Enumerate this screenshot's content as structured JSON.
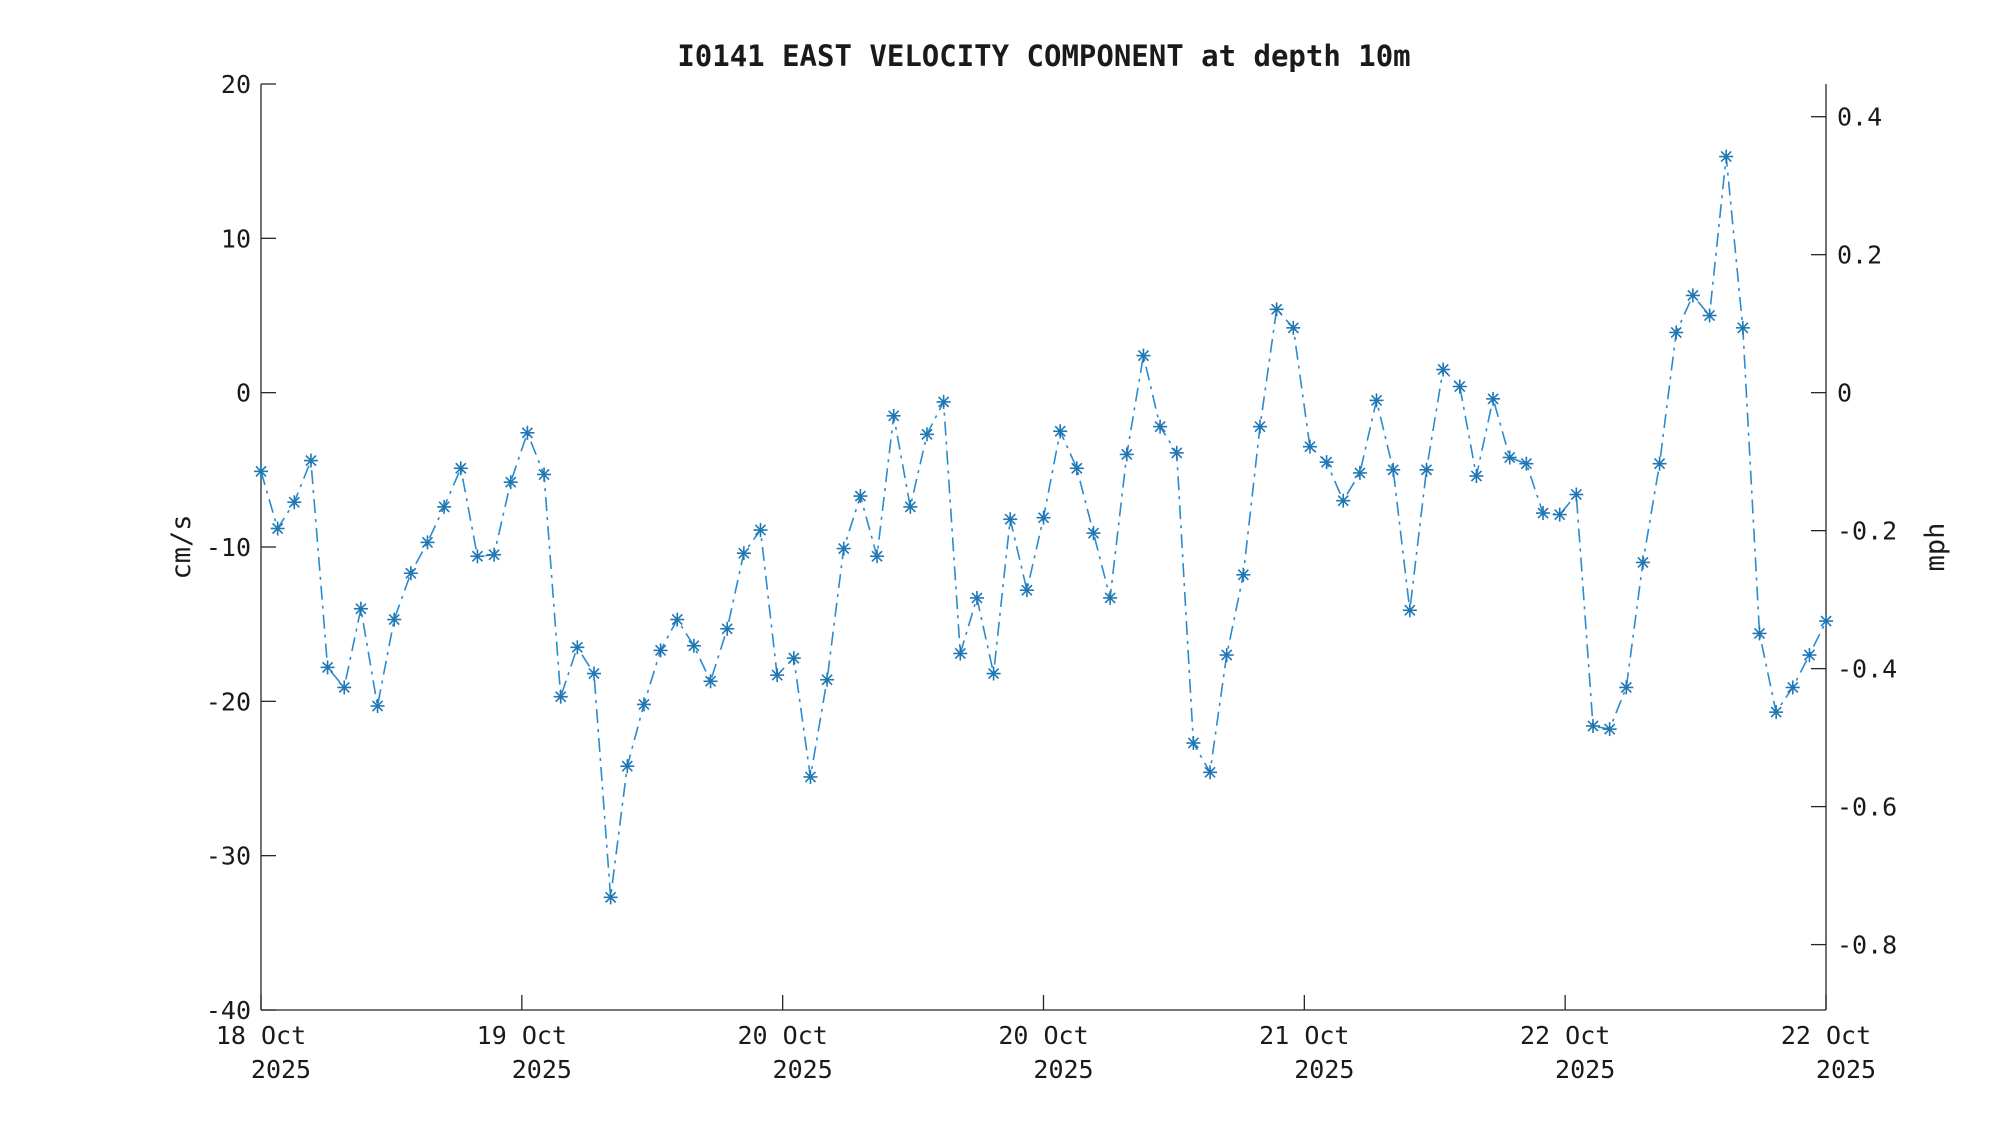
{
  "chart_data": {
    "type": "line",
    "title": "I0141 EAST VELOCITY COMPONENT at depth 10m",
    "ylabel": "cm/s",
    "y2label": "mph",
    "ylim": [
      -40,
      20
    ],
    "y2lim": [
      -0.8948,
      0.4474
    ],
    "yticks": [
      "-40",
      "-30",
      "-20",
      "-10",
      "0",
      "10",
      "20"
    ],
    "y2ticks": [
      "-0.8",
      "-0.6",
      "-0.4",
      "-0.2",
      "0",
      "0.2",
      "0.4"
    ],
    "xlim": [
      0,
      3600
    ],
    "xlabel_units": "minutes after 18 Oct 2025 00:00",
    "xticks": [
      {
        "x": 0,
        "line1": "18 Oct",
        "line2": "2025"
      },
      {
        "x": 600,
        "line1": "19 Oct",
        "line2": "2025"
      },
      {
        "x": 1200,
        "line1": "20 Oct",
        "line2": "2025"
      },
      {
        "x": 1800,
        "line1": "20 Oct",
        "line2": "2025"
      },
      {
        "x": 2400,
        "line1": "21 Oct",
        "line2": "2025"
      },
      {
        "x": 3000,
        "line1": "22 Oct",
        "line2": "2025"
      },
      {
        "x": 3600,
        "line1": "22 Oct",
        "line2": "2025"
      }
    ],
    "grid": false,
    "legend": "none",
    "color": "#1f77b4",
    "marker": "asterisk",
    "line_style": "dash-dot",
    "interval_minutes": 38.3,
    "values": [
      -5.1,
      -8.8,
      -7.1,
      -4.4,
      -17.8,
      -19.1,
      -14.0,
      -20.3,
      -14.7,
      -11.7,
      -9.7,
      -7.4,
      -4.9,
      -10.6,
      -10.5,
      -5.8,
      -2.6,
      -5.3,
      -19.7,
      -16.5,
      -18.2,
      -32.7,
      -24.2,
      -20.2,
      -16.7,
      -14.7,
      -16.4,
      -18.7,
      -15.3,
      -10.4,
      -8.9,
      -18.3,
      -17.2,
      -24.9,
      -18.6,
      -10.1,
      -6.7,
      -10.6,
      -1.5,
      -7.4,
      -2.7,
      -0.6,
      -16.9,
      -13.3,
      -18.2,
      -8.2,
      -12.8,
      -8.1,
      -2.5,
      -4.9,
      -9.1,
      -13.3,
      -4.0,
      2.4,
      -2.2,
      -3.9,
      -22.7,
      -24.6,
      -17.0,
      -11.8,
      -2.2,
      5.4,
      4.2,
      -3.5,
      -4.5,
      -7.0,
      -5.2,
      -0.5,
      -5.0,
      -14.1,
      -5.0,
      1.5,
      0.4,
      -5.4,
      -0.4,
      -4.2,
      -4.6,
      -7.8,
      -7.9,
      -6.6,
      -21.6,
      -21.8,
      -19.1,
      -11.0,
      -4.6,
      3.9,
      6.3,
      5.0,
      15.3,
      4.2,
      -15.6,
      -20.7,
      -19.1,
      -17.0,
      -14.8
    ]
  }
}
